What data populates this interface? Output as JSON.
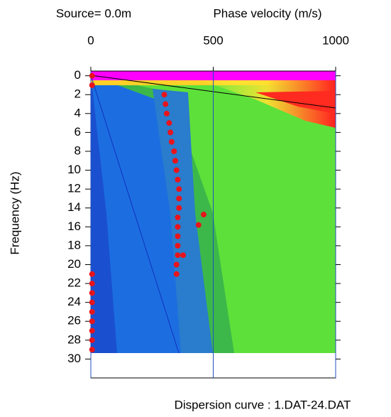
{
  "chart_data": {
    "type": "scatter",
    "title": "Source=  0.0m",
    "xlabel": "Phase velocity (m/s)",
    "ylabel": "Frequency (Hz)",
    "caption": "Dispersion curve : 1.DAT-24.DAT",
    "xlim": [
      0,
      1000
    ],
    "xticks": [
      0,
      500,
      1000
    ],
    "ylim": [
      -0.5,
      32
    ],
    "yticks": [
      0,
      2,
      4,
      6,
      8,
      10,
      12,
      14,
      16,
      18,
      20,
      22,
      24,
      26,
      28,
      30
    ],
    "y_inverted": true,
    "grid": true,
    "grid_color": "#2050c0",
    "color": "#e8141c",
    "x": [
      300,
      305,
      310,
      320,
      325,
      330,
      340,
      345,
      350,
      355,
      360,
      360,
      360,
      355,
      355,
      355,
      355,
      355,
      350,
      350,
      461,
      440,
      377,
      5,
      5,
      5,
      5,
      5,
      5,
      5,
      5,
      5,
      5,
      5
    ],
    "values": [
      2,
      3,
      4,
      5,
      6,
      7,
      8,
      9,
      10,
      11,
      12,
      13,
      14,
      15,
      16,
      17,
      18,
      19,
      20,
      21,
      14.7,
      15.8,
      19,
      0,
      1,
      21,
      22,
      23,
      24,
      25,
      26,
      27,
      28,
      29
    ]
  }
}
